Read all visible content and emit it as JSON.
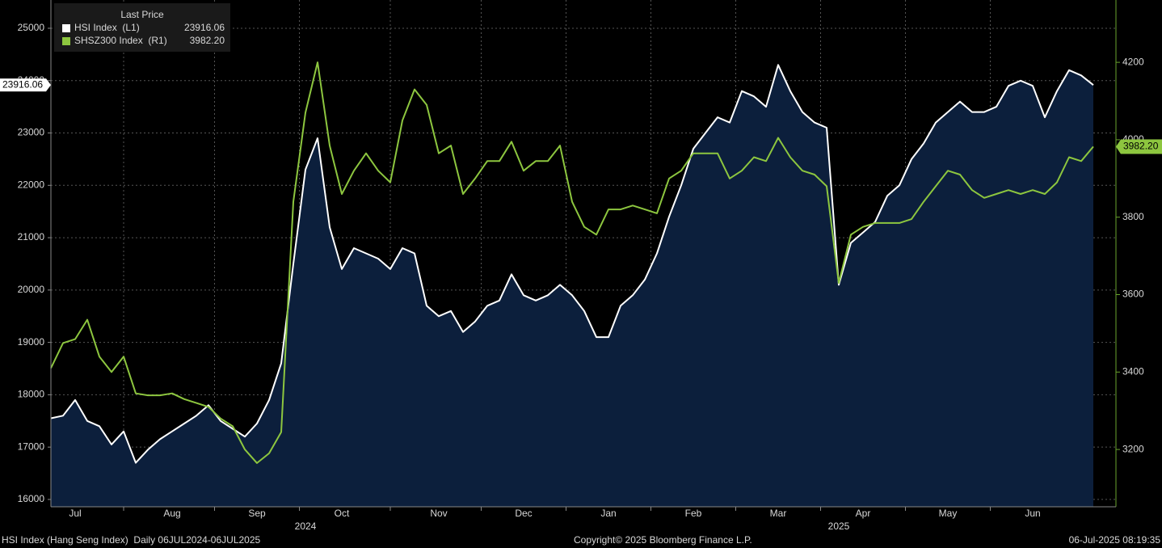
{
  "chart_data": {
    "type": "line",
    "legend_title": "Last Price",
    "categories": [
      null,
      null,
      "Jul",
      null,
      null,
      null,
      null,
      null,
      null,
      null,
      "Aug",
      null,
      null,
      null,
      null,
      null,
      null,
      "Sep",
      null,
      null,
      null,
      null,
      null,
      null,
      "Oct",
      null,
      null,
      null,
      null,
      null,
      null,
      null,
      "Nov",
      null,
      null,
      null,
      null,
      null,
      null,
      "Dec",
      null,
      null,
      null,
      null,
      null,
      null,
      "Jan",
      null,
      null,
      null,
      null,
      null,
      null,
      "Feb",
      null,
      null,
      null,
      null,
      null,
      null,
      "Mar",
      null,
      null,
      null,
      null,
      null,
      null,
      "Apr",
      null,
      null,
      null,
      null,
      null,
      null,
      "May",
      null,
      null,
      null,
      null,
      null,
      null,
      "Jun",
      null,
      null,
      null,
      null,
      null
    ],
    "years": [
      null,
      null,
      null,
      null,
      null,
      null,
      null,
      null,
      null,
      null,
      null,
      null,
      null,
      null,
      null,
      null,
      null,
      null,
      null,
      null,
      null,
      "2024",
      null,
      null,
      null,
      null,
      null,
      null,
      null,
      null,
      null,
      null,
      null,
      null,
      null,
      null,
      null,
      null,
      null,
      null,
      null,
      null,
      null,
      null,
      null,
      null,
      null,
      null,
      null,
      null,
      null,
      null,
      null,
      null,
      null,
      null,
      null,
      null,
      null,
      null,
      null,
      null,
      null,
      null,
      null,
      "2025",
      null,
      null,
      null,
      null,
      null,
      null,
      null,
      null,
      null,
      null,
      null,
      null,
      null,
      null,
      null,
      null,
      null,
      null,
      null,
      null,
      null
    ],
    "series": [
      {
        "name": "HSI Index  (L1)",
        "color": "#ffffff",
        "fill": "#0c1f3c",
        "axis": "y",
        "values": [
          17550,
          17600,
          17900,
          17500,
          17400,
          17050,
          17300,
          16700,
          16950,
          17150,
          17300,
          17450,
          17600,
          17800,
          17500,
          17350,
          17200,
          17450,
          17900,
          18600,
          20500,
          22300,
          22900,
          21200,
          20400,
          20800,
          20700,
          20600,
          20400,
          20800,
          20700,
          19700,
          19500,
          19600,
          19200,
          19400,
          19700,
          19800,
          20300,
          19900,
          19800,
          19900,
          20100,
          19900,
          19600,
          19100,
          19100,
          19700,
          19900,
          20200,
          20700,
          21400,
          22000,
          22700,
          23000,
          23300,
          23200,
          23800,
          23700,
          23500,
          24300,
          23800,
          23400,
          23200,
          23100,
          20100,
          20900,
          21100,
          21300,
          21800,
          22000,
          22500,
          22800,
          23200,
          23400,
          23600,
          23400,
          23400,
          23500,
          23900,
          24000,
          23900,
          23300,
          23800,
          24200,
          24100,
          23916.06
        ]
      },
      {
        "name": "SHSZ300 Index  (R1)",
        "color": "#8dc63f",
        "axis": "y2",
        "last_label": "3982.20",
        "values": [
          3410,
          3475,
          3485,
          3535,
          3440,
          3400,
          3440,
          3345,
          3340,
          3340,
          3345,
          3330,
          3320,
          3310,
          3280,
          3260,
          3200,
          3165,
          3190,
          3245,
          3840,
          4070,
          4200,
          3985,
          3860,
          3920,
          3965,
          3920,
          3890,
          4050,
          4130,
          4090,
          3965,
          3985,
          3860,
          3900,
          3945,
          3945,
          3995,
          3920,
          3945,
          3945,
          3985,
          3840,
          3775,
          3755,
          3820,
          3820,
          3830,
          3820,
          3810,
          3900,
          3920,
          3965,
          3965,
          3965,
          3900,
          3920,
          3955,
          3945,
          4005,
          3955,
          3920,
          3910,
          3880,
          3630,
          3755,
          3775,
          3785,
          3785,
          3785,
          3795,
          3840,
          3880,
          3920,
          3910,
          3870,
          3850,
          3860,
          3870,
          3860,
          3870,
          3860,
          3890,
          3955,
          3945,
          3982.2
        ]
      }
    ],
    "ylim": [
      15860,
      25540
    ],
    "yticks": [
      16000,
      17000,
      18000,
      19000,
      20000,
      21000,
      22000,
      23000,
      24000,
      25000
    ],
    "y2lim": [
      3052,
      4361
    ],
    "y2ticks": [
      3200,
      3400,
      3600,
      3800,
      4000,
      4200
    ],
    "grid": true,
    "legend": "top-left",
    "footer": {
      "left": "HSI Index (Hang Seng Index)  Daily 06JUL2024-06JUL2025",
      "center": "Copyright© 2025 Bloomberg Finance L.P.",
      "right": "06-Jul-2025 08:19:35"
    }
  }
}
